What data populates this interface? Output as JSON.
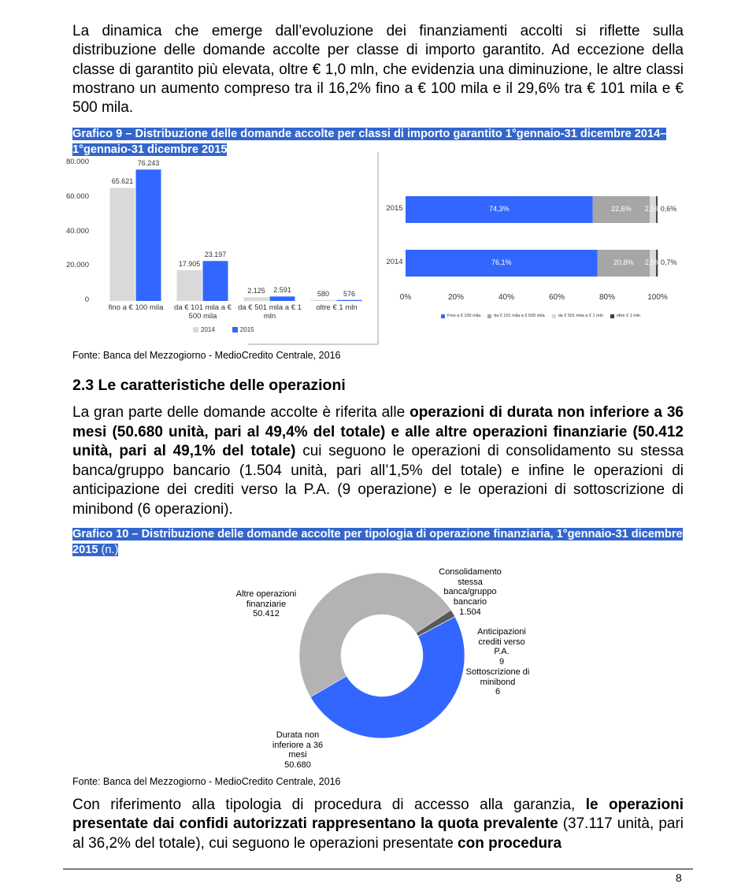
{
  "paragraphs": [
    [
      {
        "text": "La dinamica che emerge dall’evoluzione dei finanziamenti accolti si riflette sulla distribuzione delle domande accolte per classe di importo garantito. Ad eccezione della classe di garantito più elevata, oltre € 1,0 mln, che evidenzia una diminuzione, le altre classi mostrano un aumento compreso tra il 16,2% fino a € 100 mila e il 29,6% tra € 101 mila e € 500 mila."
      }
    ],
    [
      {
        "text": "La gran parte delle domande accolte è riferita alle "
      },
      {
        "text": "operazioni di durata non inferiore a 36 mesi (50.680 unità, pari al 49,4% del totale) e alle altre operazioni finanziarie (50.412 unità, pari al 49,1% del totale)",
        "bold": true
      },
      {
        "text": " cui seguono le operazioni di consolidamento su stessa banca/gruppo bancario (1.504 unità, pari all’1,5% del totale) e infine le operazioni di anticipazione dei crediti verso la P.A. (9 operazione) e le operazioni di sottoscrizione di minibond (6 operazioni)."
      }
    ],
    [
      {
        "text": "Con riferimento alla tipologia di procedura di accesso alla garanzia, "
      },
      {
        "text": "le operazioni presentate dai confidi autorizzati rappresentano la quota prevalente",
        "bold": true
      },
      {
        "text": " (37.117 unità, pari al 36,2% del totale), cui seguono le operazioni presentate "
      },
      {
        "text": "con procedura",
        "bold": true
      }
    ]
  ],
  "caption_9": "Grafico 9 – Distribuzione delle domande accolte per classi di importo garantito 1°gennaio-31 dicembre 2014– 1°gennaio-31 dicembre 2015",
  "source_9": "Fonte: Banca del Mezzogiorno - MedioCredito Centrale, 2016",
  "heading": "2.3 Le caratteristiche delle operazioni",
  "caption_10": "Grafico 10 – Distribuzione delle domande accolte per tipologia di operazione finanziaria, 1°gennaio-31 dicembre 2015",
  "caption_10_unit": "(n.)",
  "source_10": "Fonte: Banca del Mezzogiorno - MedioCredito Centrale, 2016",
  "page_number": 8,
  "chart_data": [
    {
      "type": "bar",
      "categories": [
        "fino a € 100 mila",
        "da € 101 mila a € 500 mila",
        "da € 501 mila a € 1 mln",
        "oltre € 1 mln"
      ],
      "series": [
        {
          "name": "2014",
          "color": "#d9d9d9",
          "values": [
            65621,
            17905,
            2125,
            580
          ],
          "value_labels": [
            "65.621",
            "17.905",
            "2.125",
            "580"
          ]
        },
        {
          "name": "2015",
          "color": "#3366ff",
          "values": [
            76243,
            23197,
            2591,
            576
          ],
          "value_labels": [
            "76.243",
            "23.197",
            "2.591",
            "576"
          ]
        }
      ],
      "ylim": [
        0,
        80000
      ],
      "yticks": [
        0,
        {
          "value": 20000,
          "label": "20.000"
        },
        {
          "value": 40000,
          "label": "40.000"
        },
        {
          "value": 60000,
          "label": "60.000"
        },
        {
          "value": 80000,
          "label": "80.000"
        }
      ]
    },
    {
      "type": "hbar-stacked",
      "categories": [
        "2015",
        "2014"
      ],
      "series": [
        {
          "name": "Fino a € 100 mila",
          "color": "#3366ff",
          "values": [
            74.3,
            76.1
          ],
          "value_labels": [
            "74,3%",
            "76,1%"
          ]
        },
        {
          "name": "da € 101 mila a € 500 mila",
          "color": "#a6a6a6",
          "values": [
            22.6,
            20.8
          ],
          "value_labels": [
            "22,6%",
            "20,8%"
          ]
        },
        {
          "name": "da € 501 mila a € 1 mln",
          "color": "#d9d9d9",
          "values": [
            2.5,
            2.5
          ],
          "value_labels": [
            "2,5%",
            "2,5%"
          ]
        },
        {
          "name": "oltre € 1 mln",
          "color": "#404040",
          "values": [
            0.6,
            0.7
          ],
          "value_labels": [
            "0,6%",
            "0,7%"
          ]
        }
      ],
      "xlim": [
        0,
        100
      ],
      "xticks": [
        {
          "value": 0,
          "label": "0%"
        },
        {
          "value": 20,
          "label": "20%"
        },
        {
          "value": 40,
          "label": "40%"
        },
        {
          "value": 60,
          "label": "60%"
        },
        {
          "value": 80,
          "label": "80%"
        },
        {
          "value": 100,
          "label": "100%"
        }
      ]
    },
    {
      "type": "donut",
      "categories": [
        "Durata non inferiore a 36 mesi",
        "Altre operazioni finanziarie",
        "Consolidamento stessa banca/gruppo bancario",
        "Anticipazioni crediti verso P.A.",
        "Sottoscrizione di minibond"
      ],
      "values": [
        50680,
        50412,
        1504,
        9,
        6
      ],
      "value_labels": [
        "50.680",
        "50.412",
        "1.504",
        "9",
        "6"
      ],
      "colors": [
        "#3366ff",
        "#b3b3b3",
        "#595959",
        "#1f3d99",
        "#8c8c8c"
      ]
    }
  ]
}
